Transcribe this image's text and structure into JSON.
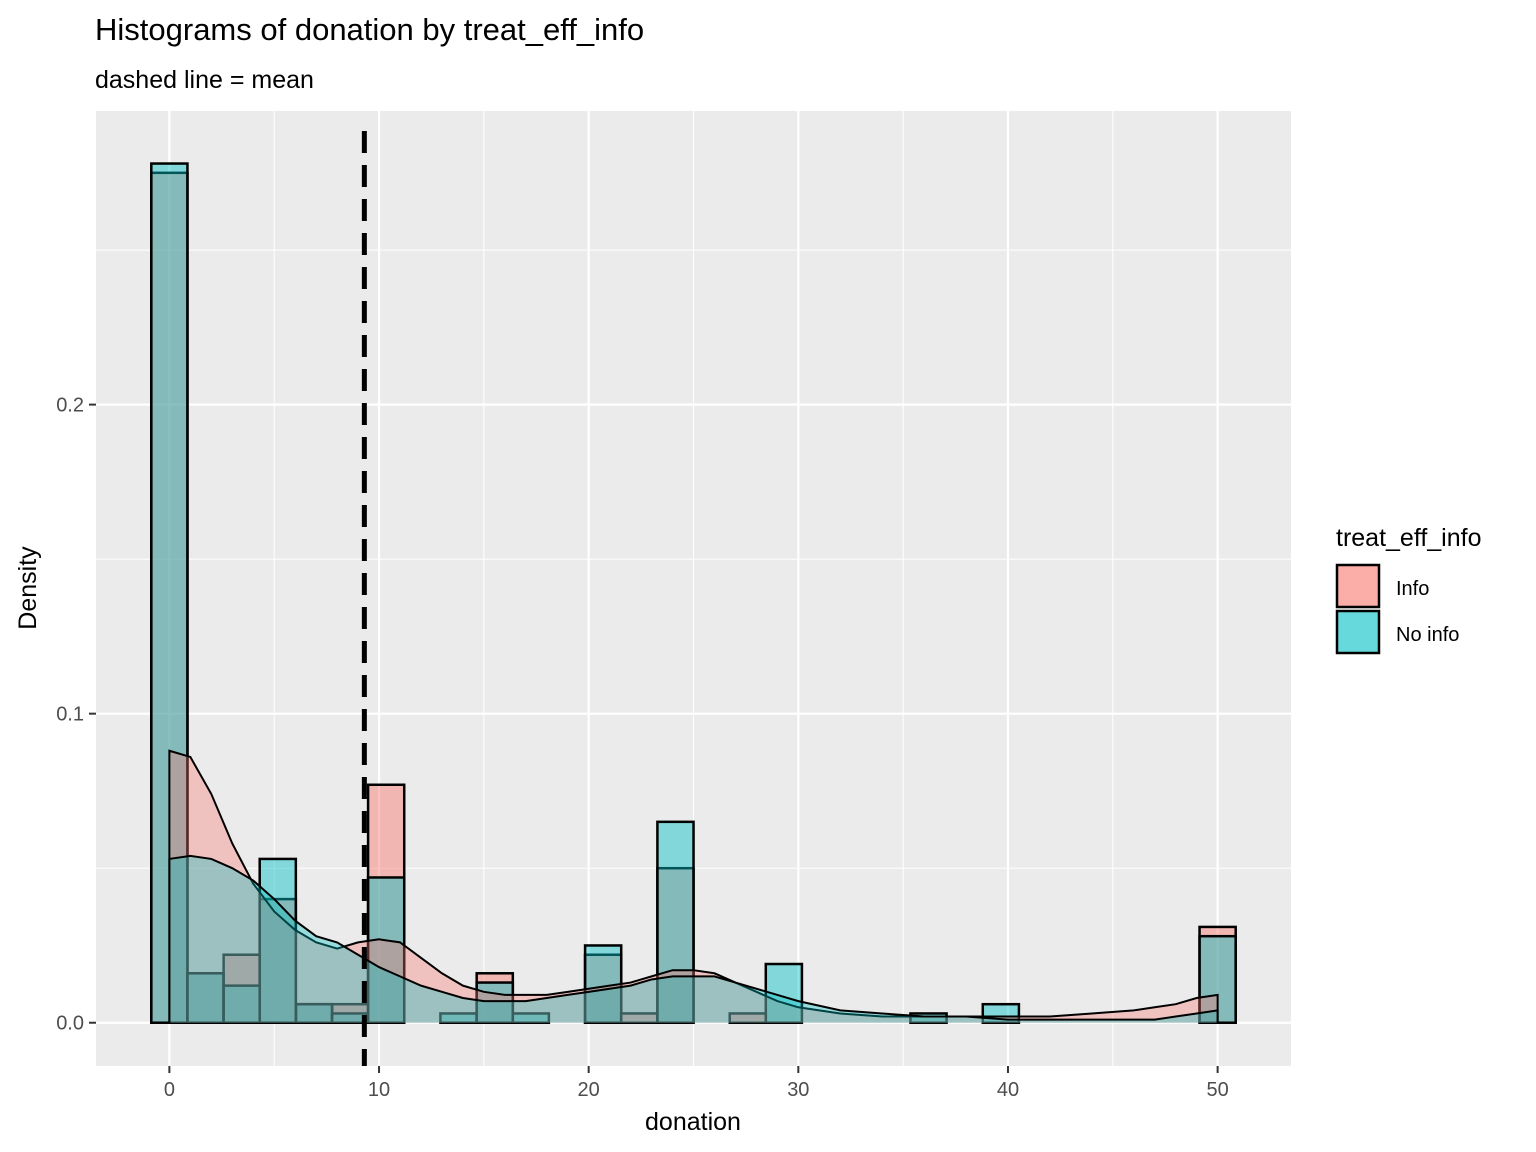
{
  "chart_data": {
    "type": "bar",
    "title": "Histograms of donation by treat_eff_info",
    "subtitle": "dashed line = mean",
    "xlabel": "donation",
    "ylabel": "Density",
    "xlim": [
      -3.5,
      53.5
    ],
    "ylim": [
      -0.014,
      0.295
    ],
    "x_ticks": [
      0,
      10,
      20,
      30,
      40,
      50
    ],
    "x_tick_labels": [
      "0",
      "10",
      "20",
      "30",
      "40",
      "50"
    ],
    "y_ticks": [
      0.0,
      0.1,
      0.2
    ],
    "y_tick_labels": [
      "0.0",
      "0.1",
      "0.2"
    ],
    "grid": true,
    "legend": {
      "title": "treat_eff_info",
      "position": "right",
      "items": [
        {
          "label": "Info",
          "color": "#F8766D"
        },
        {
          "label": "No info",
          "color": "#00BFC4"
        }
      ]
    },
    "bin_width": 1.724,
    "mean_line": 9.3,
    "series": [
      {
        "name": "Info",
        "color": "#F8766D",
        "bins": [
          {
            "x": 0,
            "density": 0.275
          },
          {
            "x": 1.72,
            "density": 0.016
          },
          {
            "x": 3.45,
            "density": 0.022
          },
          {
            "x": 5.17,
            "density": 0.04
          },
          {
            "x": 6.9,
            "density": 0.006
          },
          {
            "x": 8.62,
            "density": 0.006
          },
          {
            "x": 10.34,
            "density": 0.077
          },
          {
            "x": 15.52,
            "density": 0.016
          },
          {
            "x": 20.69,
            "density": 0.022
          },
          {
            "x": 22.41,
            "density": 0.003
          },
          {
            "x": 24.14,
            "density": 0.05
          },
          {
            "x": 27.59,
            "density": 0.003
          },
          {
            "x": 50.0,
            "density": 0.031
          }
        ],
        "density_curve": [
          [
            0,
            0.088
          ],
          [
            1,
            0.086
          ],
          [
            2,
            0.074
          ],
          [
            3,
            0.058
          ],
          [
            4,
            0.045
          ],
          [
            5,
            0.036
          ],
          [
            6,
            0.03
          ],
          [
            7,
            0.026
          ],
          [
            8,
            0.024
          ],
          [
            9,
            0.026
          ],
          [
            10,
            0.027
          ],
          [
            11,
            0.026
          ],
          [
            12,
            0.021
          ],
          [
            13,
            0.016
          ],
          [
            14,
            0.012
          ],
          [
            15,
            0.01
          ],
          [
            16,
            0.009
          ],
          [
            17,
            0.009
          ],
          [
            18,
            0.009
          ],
          [
            19,
            0.01
          ],
          [
            20,
            0.011
          ],
          [
            21,
            0.012
          ],
          [
            22,
            0.013
          ],
          [
            23,
            0.015
          ],
          [
            24,
            0.017
          ],
          [
            25,
            0.017
          ],
          [
            26,
            0.016
          ],
          [
            27,
            0.013
          ],
          [
            28,
            0.01
          ],
          [
            29,
            0.007
          ],
          [
            30,
            0.005
          ],
          [
            32,
            0.003
          ],
          [
            34,
            0.002
          ],
          [
            36,
            0.002
          ],
          [
            38,
            0.002
          ],
          [
            40,
            0.002
          ],
          [
            42,
            0.002
          ],
          [
            44,
            0.003
          ],
          [
            46,
            0.004
          ],
          [
            47,
            0.005
          ],
          [
            48,
            0.006
          ],
          [
            49,
            0.008
          ],
          [
            50,
            0.009
          ]
        ]
      },
      {
        "name": "No info",
        "color": "#00BFC4",
        "bins": [
          {
            "x": 0,
            "density": 0.278
          },
          {
            "x": 1.72,
            "density": 0.016
          },
          {
            "x": 3.45,
            "density": 0.012
          },
          {
            "x": 5.17,
            "density": 0.053
          },
          {
            "x": 6.9,
            "density": 0.006
          },
          {
            "x": 8.62,
            "density": 0.003
          },
          {
            "x": 10.34,
            "density": 0.047
          },
          {
            "x": 13.79,
            "density": 0.003
          },
          {
            "x": 15.52,
            "density": 0.013
          },
          {
            "x": 17.24,
            "density": 0.003
          },
          {
            "x": 20.69,
            "density": 0.025
          },
          {
            "x": 24.14,
            "density": 0.065
          },
          {
            "x": 29.31,
            "density": 0.019
          },
          {
            "x": 36.21,
            "density": 0.003
          },
          {
            "x": 39.66,
            "density": 0.006
          },
          {
            "x": 50.0,
            "density": 0.028
          }
        ],
        "density_curve": [
          [
            0,
            0.053
          ],
          [
            1,
            0.054
          ],
          [
            2,
            0.053
          ],
          [
            3,
            0.05
          ],
          [
            4,
            0.046
          ],
          [
            5,
            0.04
          ],
          [
            6,
            0.033
          ],
          [
            7,
            0.028
          ],
          [
            8,
            0.026
          ],
          [
            9,
            0.022
          ],
          [
            10,
            0.018
          ],
          [
            11,
            0.015
          ],
          [
            12,
            0.012
          ],
          [
            13,
            0.01
          ],
          [
            14,
            0.008
          ],
          [
            15,
            0.007
          ],
          [
            16,
            0.007
          ],
          [
            17,
            0.007
          ],
          [
            18,
            0.008
          ],
          [
            19,
            0.009
          ],
          [
            20,
            0.01
          ],
          [
            21,
            0.011
          ],
          [
            22,
            0.012
          ],
          [
            23,
            0.014
          ],
          [
            24,
            0.015
          ],
          [
            25,
            0.015
          ],
          [
            26,
            0.015
          ],
          [
            27,
            0.013
          ],
          [
            28,
            0.011
          ],
          [
            29,
            0.009
          ],
          [
            30,
            0.007
          ],
          [
            32,
            0.004
          ],
          [
            34,
            0.003
          ],
          [
            36,
            0.002
          ],
          [
            38,
            0.002
          ],
          [
            40,
            0.001
          ],
          [
            42,
            0.001
          ],
          [
            44,
            0.001
          ],
          [
            46,
            0.001
          ],
          [
            47,
            0.001
          ],
          [
            48,
            0.002
          ],
          [
            49,
            0.003
          ],
          [
            50,
            0.004
          ]
        ]
      }
    ]
  }
}
